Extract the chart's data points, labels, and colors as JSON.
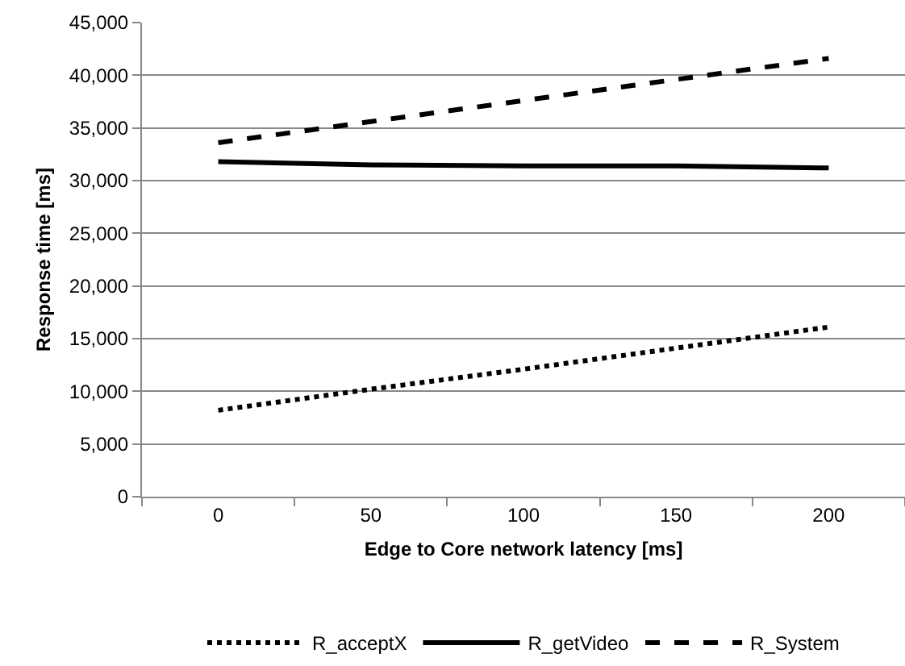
{
  "chart_data": {
    "type": "line",
    "xlabel": "Edge to Core network latency [ms]",
    "ylabel": "Response time [ms]",
    "categories": [
      "0",
      "50",
      "100",
      "150",
      "200"
    ],
    "series": [
      {
        "name": "R_acceptX",
        "color": "#000000",
        "line_style": "dotted",
        "values": [
          8200,
          10200,
          12100,
          14100,
          16100
        ]
      },
      {
        "name": "R_getVideo",
        "color": "#000000",
        "line_style": "solid",
        "values": [
          31800,
          31500,
          31400,
          31400,
          31200
        ]
      },
      {
        "name": "R_System",
        "color": "#000000",
        "line_style": "dashed",
        "values": [
          33600,
          35600,
          37600,
          39600,
          41600
        ]
      }
    ],
    "ylim": [
      0,
      45000
    ],
    "yticks": [
      0,
      {
        "value": 5000,
        "label": "5,000"
      },
      {
        "value": 10000,
        "label": "10,000"
      },
      {
        "value": 15000,
        "label": "15,000"
      },
      {
        "value": 20000,
        "label": "20,000"
      },
      {
        "value": 25000,
        "label": "25,000"
      },
      {
        "value": 30000,
        "label": "30,000"
      },
      {
        "value": 35000,
        "label": "35,000"
      },
      {
        "value": 40000,
        "label": "40,000"
      },
      {
        "value": 45000,
        "label": "45,000"
      }
    ],
    "grid": "y",
    "legend": "bottom",
    "marker": "none"
  }
}
